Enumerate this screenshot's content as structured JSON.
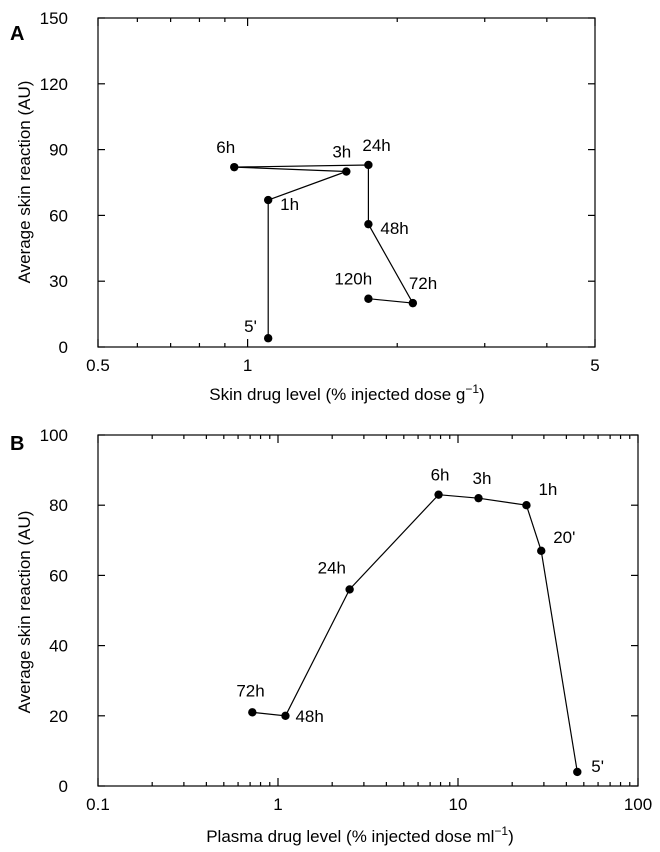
{
  "chart_data": [
    {
      "panel_label": "A",
      "type": "scatter",
      "xlabel_main": "Skin drug level (% injected dose g",
      "xlabel_sup": "−1",
      "xlabel_end": ")",
      "ylabel": "Average skin reaction (AU)",
      "x_scale": "log",
      "xlim": [
        0.5,
        5
      ],
      "ylim": [
        0,
        150
      ],
      "x_ticks": [
        0.5,
        1,
        5
      ],
      "x_tick_labels": [
        "0.5",
        "1",
        "5"
      ],
      "x_minor_ticks": [
        0.6,
        0.7,
        0.8,
        0.9,
        2,
        3,
        4
      ],
      "y_ticks": [
        0,
        30,
        60,
        90,
        120,
        150
      ],
      "y_tick_labels": [
        "0",
        "30",
        "60",
        "90",
        "120",
        "150"
      ],
      "points": [
        {
          "label": "5'",
          "x": 1.1,
          "y": 4
        },
        {
          "label": "1h",
          "x": 1.1,
          "y": 67
        },
        {
          "label": "3h",
          "x": 1.58,
          "y": 80
        },
        {
          "label": "6h",
          "x": 0.94,
          "y": 82
        },
        {
          "label": "24h",
          "x": 1.75,
          "y": 83
        },
        {
          "label": "48h",
          "x": 1.75,
          "y": 56
        },
        {
          "label": "72h",
          "x": 2.15,
          "y": 20
        },
        {
          "label": "120h",
          "x": 1.75,
          "y": 22
        }
      ],
      "path_order": [
        "5'",
        "1h",
        "3h",
        "6h",
        "24h",
        "48h",
        "72h",
        "120h"
      ],
      "grid": false
    },
    {
      "panel_label": "B",
      "type": "scatter",
      "xlabel_main": "Plasma drug level (% injected dose ml",
      "xlabel_sup": "−1",
      "xlabel_end": ")",
      "ylabel": "Average skin reaction (AU)",
      "x_scale": "log",
      "xlim": [
        0.1,
        100
      ],
      "ylim": [
        0,
        100
      ],
      "x_ticks": [
        0.1,
        1,
        10,
        100
      ],
      "x_tick_labels": [
        "0.1",
        "1",
        "10",
        "100"
      ],
      "x_minor_ticks": [
        0.2,
        0.3,
        0.4,
        0.5,
        0.6,
        0.7,
        0.8,
        0.9,
        2,
        3,
        4,
        5,
        6,
        7,
        8,
        9,
        20,
        30,
        40,
        50,
        60,
        70,
        80,
        90
      ],
      "y_ticks": [
        0,
        20,
        40,
        60,
        80,
        100
      ],
      "y_tick_labels": [
        "0",
        "20",
        "40",
        "60",
        "80",
        "100"
      ],
      "points": [
        {
          "label": "5'",
          "x": 46,
          "y": 4
        },
        {
          "label": "20'",
          "x": 29,
          "y": 67
        },
        {
          "label": "1h",
          "x": 24,
          "y": 80
        },
        {
          "label": "3h",
          "x": 13,
          "y": 82
        },
        {
          "label": "6h",
          "x": 7.8,
          "y": 83
        },
        {
          "label": "24h",
          "x": 2.5,
          "y": 56
        },
        {
          "label": "48h",
          "x": 1.1,
          "y": 20
        },
        {
          "label": "72h",
          "x": 0.72,
          "y": 21
        }
      ],
      "path_order": [
        "5'",
        "20'",
        "1h",
        "3h",
        "6h",
        "24h",
        "48h",
        "72h"
      ],
      "grid": false
    }
  ]
}
